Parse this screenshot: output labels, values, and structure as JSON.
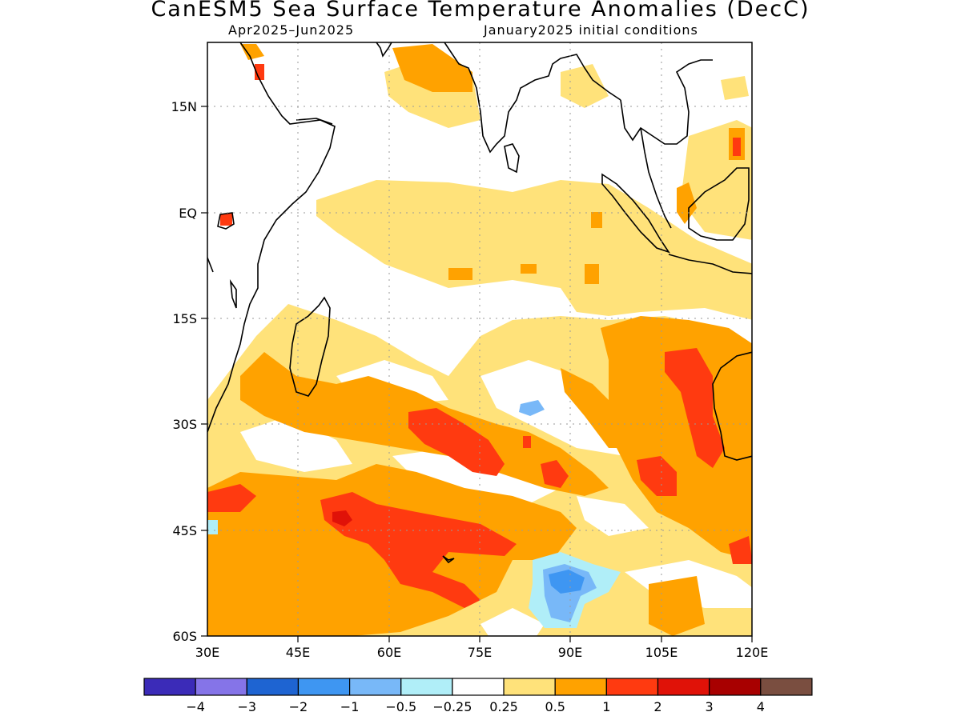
{
  "header": {
    "title": "CanESM5 Sea Surface Temperature Anomalies (DecC)",
    "period": "Apr2025–Jun2025",
    "initial_conditions": "January2025 initial conditions"
  },
  "axes": {
    "lat_labels": [
      "15N",
      "EQ",
      "15S",
      "30S",
      "45S",
      "60S"
    ],
    "lon_labels": [
      "30E",
      "45E",
      "60E",
      "75E",
      "90E",
      "105E",
      "120E"
    ]
  },
  "colorbar": {
    "colors": [
      "#3b2bb8",
      "#8574e8",
      "#1e64d2",
      "#3e96f2",
      "#78b8f8",
      "#b0eef8",
      "#ffffff",
      "#ffe27a",
      "#ffa200",
      "#ff3a10",
      "#e01208",
      "#a80000",
      "#7a4e40"
    ],
    "labels": [
      "−4",
      "−3",
      "−2",
      "−1",
      "−0.5",
      "−0.25",
      "0.25",
      "0.5",
      "1",
      "2",
      "3",
      "4"
    ]
  }
}
